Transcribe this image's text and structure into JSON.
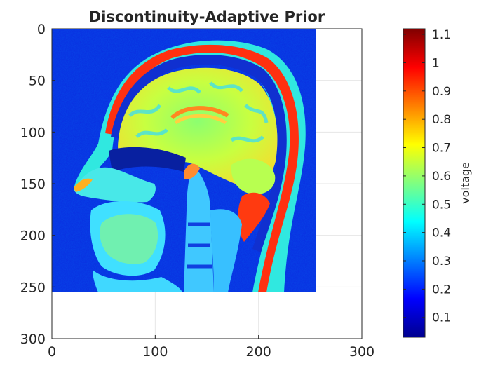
{
  "chart_data": {
    "type": "heatmap",
    "title": "Discontinuity-Adaptive Prior",
    "xlabel": "",
    "ylabel": "",
    "xlim": [
      0,
      300
    ],
    "ylim": [
      0,
      300
    ],
    "y_reversed": true,
    "xticks": [
      0,
      100,
      200,
      300
    ],
    "yticks": [
      0,
      50,
      100,
      150,
      200,
      250,
      300
    ],
    "grid": true,
    "image_extent": [
      0,
      256,
      0,
      256
    ],
    "image_description": "sagittal head MRI, jet colormap",
    "colormap": "jet",
    "colorbar": {
      "label": "voltage",
      "range": [
        0.03,
        1.12
      ],
      "ticks": [
        0.1,
        0.2,
        0.3,
        0.4,
        0.5,
        0.6,
        0.7,
        0.8,
        0.9,
        1,
        1.1
      ],
      "tick_labels": [
        "0.1",
        "0.2",
        "0.3",
        "0.4",
        "0.5",
        "0.6",
        "0.7",
        "0.8",
        "0.9",
        "1",
        "1.1"
      ]
    }
  }
}
